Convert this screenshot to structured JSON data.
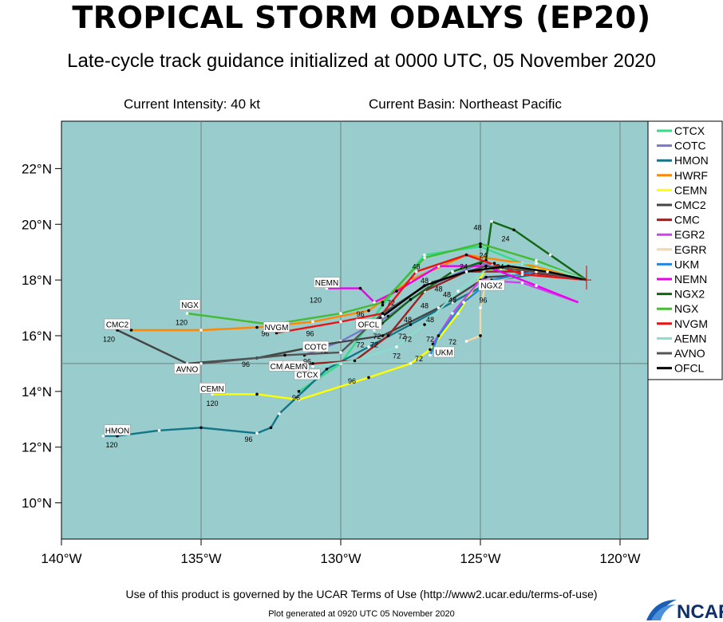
{
  "header": {
    "title": "TROPICAL STORM ODALYS (EP20)",
    "subtitle": "Late-cycle track guidance initialized at 0000 UTC, 05 November 2020",
    "current_intensity": "Current Intensity: 40 kt",
    "current_basin": "Current Basin: Northeast Pacific"
  },
  "footer": {
    "terms": "Use of this product is governed by the UCAR Terms of Use (http://www2.ucar.edu/terms-of-use)",
    "generated": "Plot generated at 0920 UTC   05 November 2020",
    "logo_text": "NCAR"
  },
  "map": {
    "lon_range": [
      -140,
      -119
    ],
    "lat_range": [
      8.7,
      23.7
    ],
    "grid_lons": [
      -135,
      -130,
      -125,
      -120
    ],
    "grid_lats": [
      15
    ],
    "x_ticks": [
      {
        "lon": -140,
        "label": "140°W"
      },
      {
        "lon": -135,
        "label": "135°W"
      },
      {
        "lon": -130,
        "label": "130°W"
      },
      {
        "lon": -125,
        "label": "125°W"
      },
      {
        "lon": -120,
        "label": "120°W"
      }
    ],
    "y_ticks": [
      {
        "lat": 10,
        "label": "10°N"
      },
      {
        "lat": 12,
        "label": "12°N"
      },
      {
        "lat": 14,
        "label": "14°N"
      },
      {
        "lat": 16,
        "label": "16°N"
      },
      {
        "lat": 18,
        "label": "18°N"
      },
      {
        "lat": 20,
        "label": "20°N"
      },
      {
        "lat": 22,
        "label": "22°N"
      }
    ],
    "ocean_color": "#99cccc",
    "current_position": {
      "lon": -121.2,
      "lat": 18.0
    }
  },
  "legend": [
    {
      "name": "CTCX",
      "color": "#33dd88"
    },
    {
      "name": "COTC",
      "color": "#7777cc"
    },
    {
      "name": "HMON",
      "color": "#117788"
    },
    {
      "name": "HWRF",
      "color": "#ff8800"
    },
    {
      "name": "CEMN",
      "color": "#ffff00"
    },
    {
      "name": "CMC2",
      "color": "#444444"
    },
    {
      "name": "CMC",
      "color": "#992222"
    },
    {
      "name": "EGR2",
      "color": "#cc44ee"
    },
    {
      "name": "EGRR",
      "color": "#f0d8a8"
    },
    {
      "name": "UKM",
      "color": "#2288dd"
    },
    {
      "name": "NEMN",
      "color": "#ee00ee"
    },
    {
      "name": "NGX2",
      "color": "#116611"
    },
    {
      "name": "NGX",
      "color": "#44bb33"
    },
    {
      "name": "NVGM",
      "color": "#ee1111"
    },
    {
      "name": "AEMN",
      "color": "#88ddcc"
    },
    {
      "name": "AVNO",
      "color": "#555555"
    },
    {
      "name": "OFCL",
      "color": "#000000"
    }
  ],
  "chart_data": {
    "type": "track_map",
    "title": "TROPICAL STORM ODALYS (EP20)",
    "series": [
      {
        "name": "CTCX",
        "color": "#33dd88",
        "points": [
          [
            -121.2,
            18.0
          ],
          [
            -123.0,
            18.4
          ],
          [
            -125.0,
            19.2
          ],
          [
            -127.0,
            18.9
          ],
          [
            -128.5,
            17.1
          ],
          [
            -130.0,
            15.0
          ],
          [
            -131.5,
            14.0
          ]
        ],
        "labels": [
          {
            "text": "96",
            "lon": -131.6,
            "lat": 13.8
          }
        ],
        "tag": {
          "text": "CTCX",
          "lon": -131.2,
          "lat": 14.6
        }
      },
      {
        "name": "COTC",
        "color": "#7777cc",
        "points": [
          [
            -121.2,
            18.0
          ],
          [
            -123.0,
            18.3
          ],
          [
            -125.0,
            18.6
          ],
          [
            -126.8,
            17.8
          ],
          [
            -128.3,
            16.7
          ],
          [
            -130.0,
            15.8
          ],
          [
            -131.3,
            15.3
          ]
        ],
        "labels": [
          {
            "text": "72",
            "lon": -130.6,
            "lat": 15.5
          }
        ],
        "tag": {
          "text": "COTC",
          "lon": -130.9,
          "lat": 15.6
        }
      },
      {
        "name": "HMON",
        "color": "#117788",
        "points": [
          [
            -121.2,
            18.0
          ],
          [
            -123.0,
            18.2
          ],
          [
            -124.5,
            18.0
          ],
          [
            -126.0,
            17.2
          ],
          [
            -127.5,
            16.4
          ],
          [
            -129.0,
            15.6
          ],
          [
            -130.5,
            14.8
          ],
          [
            -132.2,
            13.2
          ],
          [
            -132.5,
            12.7
          ],
          [
            -133.0,
            12.5
          ],
          [
            -135.0,
            12.7
          ],
          [
            -136.5,
            12.6
          ],
          [
            -138.0,
            12.4
          ],
          [
            -138.5,
            12.4
          ]
        ],
        "labels": [
          {
            "text": "96",
            "lon": -133.3,
            "lat": 12.3
          },
          {
            "text": "120",
            "lon": -138.2,
            "lat": 12.1
          }
        ],
        "tag": {
          "text": "HMON",
          "lon": -138.0,
          "lat": 12.6
        }
      },
      {
        "name": "HWRF",
        "color": "#ff8800",
        "points": [
          [
            -121.2,
            18.0
          ],
          [
            -123.5,
            18.6
          ],
          [
            -125.5,
            18.9
          ],
          [
            -127.5,
            18.0
          ],
          [
            -129.0,
            16.9
          ],
          [
            -131.0,
            16.5
          ],
          [
            -133.0,
            16.3
          ],
          [
            -135.0,
            16.2
          ],
          [
            -137.5,
            16.2
          ]
        ],
        "labels": [],
        "tag": null
      },
      {
        "name": "CEMN",
        "color": "#ffff00",
        "points": [
          [
            -121.2,
            18.0
          ],
          [
            -123.0,
            18.4
          ],
          [
            -124.8,
            18.4
          ],
          [
            -125.8,
            16.8
          ],
          [
            -126.8,
            15.5
          ],
          [
            -127.5,
            15.0
          ],
          [
            -129.0,
            14.5
          ],
          [
            -131.5,
            13.7
          ],
          [
            -133.0,
            13.9
          ],
          [
            -134.6,
            13.9
          ]
        ],
        "labels": [
          {
            "text": "72",
            "lon": -127.2,
            "lat": 15.2
          },
          {
            "text": "96",
            "lon": -129.6,
            "lat": 14.4
          },
          {
            "text": "120",
            "lon": -134.6,
            "lat": 13.6
          }
        ],
        "tag": {
          "text": "CEMN",
          "lon": -134.6,
          "lat": 14.1
        }
      },
      {
        "name": "CMC2",
        "color": "#444444",
        "points": [
          [
            -121.2,
            18.0
          ],
          [
            -123.0,
            18.2
          ],
          [
            -124.8,
            18.1
          ],
          [
            -126.5,
            17.0
          ],
          [
            -128.5,
            16.0
          ],
          [
            -130.5,
            15.7
          ],
          [
            -133.0,
            15.2
          ],
          [
            -135.5,
            15.0
          ],
          [
            -138.0,
            16.2
          ]
        ],
        "labels": [
          {
            "text": "96",
            "lon": -133.4,
            "lat": 15.0
          },
          {
            "text": "120",
            "lon": -138.3,
            "lat": 15.9
          }
        ],
        "tag": {
          "text": "CMC2",
          "lon": -138.0,
          "lat": 16.4
        }
      },
      {
        "name": "CMC",
        "color": "#992222",
        "points": [
          [
            -121.2,
            18.0
          ],
          [
            -123.5,
            18.3
          ],
          [
            -125.5,
            18.3
          ],
          [
            -127.0,
            17.6
          ],
          [
            -128.3,
            16.0
          ],
          [
            -129.5,
            15.1
          ],
          [
            -131.0,
            15.0
          ],
          [
            -132.3,
            14.8
          ]
        ],
        "labels": [],
        "tag": {
          "text": "CMC",
          "lon": -132.2,
          "lat": 14.9
        }
      },
      {
        "name": "EGR2",
        "color": "#cc44ee",
        "points": [
          [
            -121.5,
            17.2
          ],
          [
            -123.5,
            17.9
          ],
          [
            -125.0,
            18.0
          ],
          [
            -126.0,
            16.8
          ],
          [
            -126.7,
            15.7
          ]
        ],
        "labels": [],
        "tag": null
      },
      {
        "name": "EGRR",
        "color": "#f0d8a8",
        "points": [
          [
            -121.2,
            18.0
          ],
          [
            -123.5,
            18.2
          ],
          [
            -124.8,
            17.9
          ],
          [
            -125.0,
            17.0
          ],
          [
            -125.0,
            16.0
          ],
          [
            -125.5,
            15.8
          ]
        ],
        "labels": [
          {
            "text": "72",
            "lon": -126.0,
            "lat": 15.8
          }
        ],
        "tag": null
      },
      {
        "name": "UKM",
        "color": "#2288dd",
        "points": [
          [
            -121.2,
            18.0
          ],
          [
            -123.0,
            18.3
          ],
          [
            -124.6,
            18.0
          ],
          [
            -125.6,
            17.2
          ],
          [
            -126.5,
            16.0
          ],
          [
            -126.8,
            15.3
          ]
        ],
        "labels": [],
        "tag": {
          "text": "UKM",
          "lon": -126.3,
          "lat": 15.4
        }
      },
      {
        "name": "NEMN",
        "color": "#ee00ee",
        "points": [
          [
            -121.5,
            17.2
          ],
          [
            -123.0,
            17.8
          ],
          [
            -124.8,
            18.5
          ],
          [
            -126.5,
            18.5
          ],
          [
            -128.0,
            17.6
          ],
          [
            -128.8,
            17.2
          ],
          [
            -129.3,
            17.7
          ],
          [
            -130.5,
            17.7
          ]
        ],
        "labels": [
          {
            "text": "120",
            "lon": -130.9,
            "lat": 17.3
          }
        ],
        "tag": {
          "text": "NEMN",
          "lon": -130.5,
          "lat": 17.9
        }
      },
      {
        "name": "NGX2",
        "color": "#116611",
        "points": [
          [
            -121.2,
            18.0
          ],
          [
            -122.5,
            18.9
          ],
          [
            -123.8,
            19.8
          ],
          [
            -124.6,
            20.1
          ],
          [
            -124.8,
            18.7
          ],
          [
            -126.0,
            18.3
          ],
          [
            -127.5,
            17.3
          ],
          [
            -128.8,
            16.2
          ]
        ],
        "labels": [
          {
            "text": "48",
            "lon": -125.1,
            "lat": 19.9
          },
          {
            "text": "24",
            "lon": -124.1,
            "lat": 19.5
          },
          {
            "text": "96",
            "lon": -124.9,
            "lat": 17.3
          }
        ],
        "tag": {
          "text": "NGX2",
          "lon": -124.6,
          "lat": 17.8
        }
      },
      {
        "name": "NGX",
        "color": "#44bb33",
        "points": [
          [
            -121.2,
            18.0
          ],
          [
            -123.0,
            18.7
          ],
          [
            -125.0,
            19.3
          ],
          [
            -127.0,
            18.8
          ],
          [
            -128.5,
            17.2
          ],
          [
            -130.0,
            16.8
          ],
          [
            -132.5,
            16.4
          ],
          [
            -135.5,
            16.8
          ]
        ],
        "labels": [
          {
            "text": "120",
            "lon": -135.7,
            "lat": 16.5
          }
        ],
        "tag": {
          "text": "NGX",
          "lon": -135.4,
          "lat": 17.1
        }
      },
      {
        "name": "NVGM",
        "color": "#ee1111",
        "points": [
          [
            -121.2,
            18.0
          ],
          [
            -123.5,
            18.2
          ],
          [
            -125.5,
            18.9
          ],
          [
            -127.3,
            18.3
          ],
          [
            -128.5,
            16.8
          ],
          [
            -130.0,
            16.5
          ],
          [
            -132.3,
            16.1
          ]
        ],
        "labels": [
          {
            "text": "96",
            "lon": -131.1,
            "lat": 16.1
          },
          {
            "text": "96",
            "lon": -132.7,
            "lat": 16.1
          }
        ],
        "tag": {
          "text": "NVGM",
          "lon": -132.3,
          "lat": 16.3
        }
      },
      {
        "name": "AEMN",
        "color": "#88ddcc",
        "points": [
          [
            -121.2,
            18.0
          ],
          [
            -123.0,
            18.6
          ],
          [
            -124.5,
            18.6
          ],
          [
            -125.8,
            17.6
          ],
          [
            -127.0,
            16.4
          ],
          [
            -128.0,
            15.6
          ],
          [
            -129.5,
            15.1
          ],
          [
            -131.0,
            14.9
          ]
        ],
        "labels": [
          {
            "text": "72",
            "lon": -128.0,
            "lat": 15.3
          }
        ],
        "tag": {
          "text": "AEMN",
          "lon": -131.6,
          "lat": 14.9
        }
      },
      {
        "name": "AVNO",
        "color": "#555555",
        "points": [
          [
            -121.2,
            18.0
          ],
          [
            -123.0,
            18.3
          ],
          [
            -124.8,
            18.5
          ],
          [
            -126.8,
            17.9
          ],
          [
            -128.5,
            16.8
          ],
          [
            -130.0,
            15.4
          ],
          [
            -132.0,
            15.3
          ],
          [
            -135.0,
            15.0
          ]
        ],
        "labels": [
          {
            "text": "96",
            "lon": -131.2,
            "lat": 15.1
          }
        ],
        "tag": {
          "text": "AVNO",
          "lon": -135.5,
          "lat": 14.8
        }
      },
      {
        "name": "OFCL",
        "color": "#000000",
        "points": [
          [
            -121.2,
            18.0
          ],
          [
            -122.6,
            18.3
          ],
          [
            -124.0,
            18.5
          ],
          [
            -125.5,
            18.3
          ],
          [
            -127.0,
            17.8
          ],
          [
            -128.5,
            16.7
          ],
          [
            -129.0,
            16.3
          ]
        ],
        "labels": [
          {
            "text": "72",
            "lon": -128.7,
            "lat": 16.0
          },
          {
            "text": "96",
            "lon": -128.6,
            "lat": 16.5
          }
        ],
        "tag": {
          "text": "OFCL",
          "lon": -129.0,
          "lat": 16.4
        }
      }
    ],
    "extra_labels": [
      {
        "text": "24",
        "lon": -124.3,
        "lat": 18.5
      },
      {
        "text": "24",
        "lon": -124.9,
        "lat": 18.9
      },
      {
        "text": "24",
        "lon": -125.6,
        "lat": 18.5
      },
      {
        "text": "48",
        "lon": -127.3,
        "lat": 18.5
      },
      {
        "text": "48",
        "lon": -127.0,
        "lat": 18.0
      },
      {
        "text": "48",
        "lon": -126.5,
        "lat": 17.7
      },
      {
        "text": "48",
        "lon": -126.2,
        "lat": 17.5
      },
      {
        "text": "48",
        "lon": -126.0,
        "lat": 17.3
      },
      {
        "text": "48",
        "lon": -127.0,
        "lat": 17.1
      },
      {
        "text": "48",
        "lon": -127.6,
        "lat": 16.6
      },
      {
        "text": "48",
        "lon": -126.8,
        "lat": 16.6
      },
      {
        "text": "72",
        "lon": -128.2,
        "lat": 17.2
      },
      {
        "text": "72",
        "lon": -127.8,
        "lat": 16.0
      },
      {
        "text": "72",
        "lon": -128.8,
        "lat": 15.7
      },
      {
        "text": "72",
        "lon": -129.3,
        "lat": 15.7
      },
      {
        "text": "72",
        "lon": -126.8,
        "lat": 15.9
      },
      {
        "text": "72",
        "lon": -127.6,
        "lat": 15.9
      },
      {
        "text": "96",
        "lon": -129.3,
        "lat": 16.8
      }
    ]
  }
}
